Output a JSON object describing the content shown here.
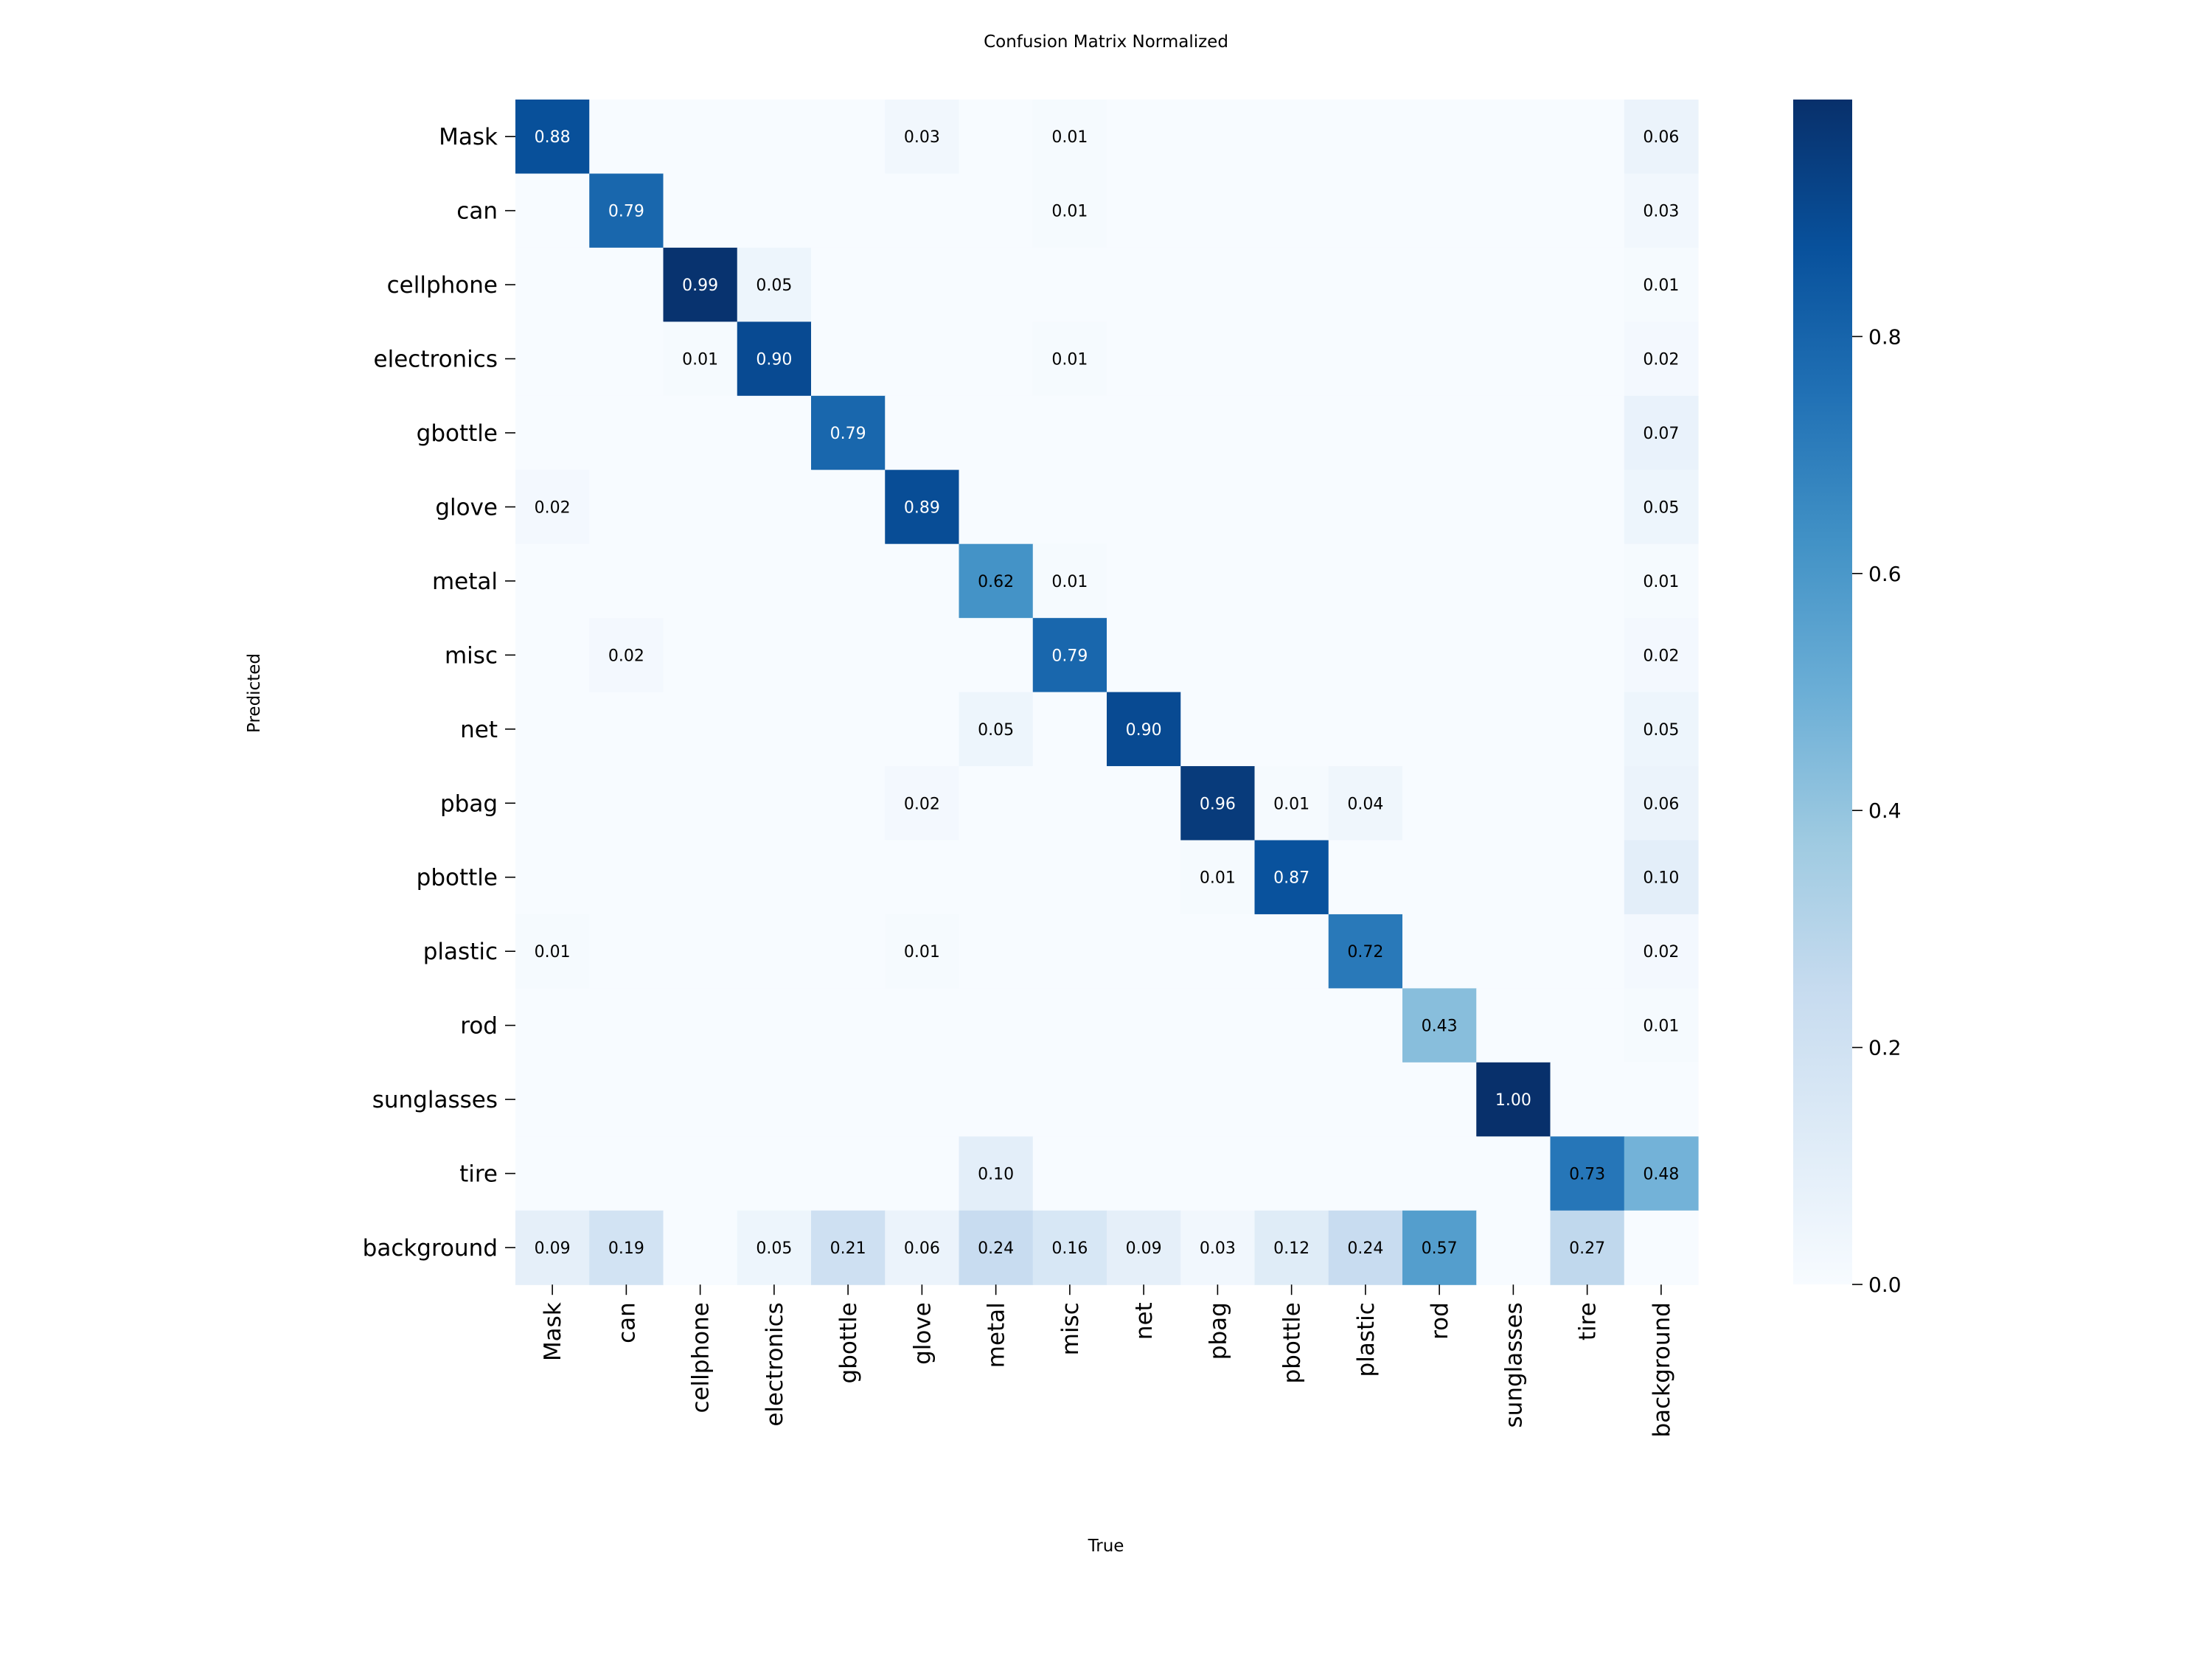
{
  "chart_data": {
    "type": "heatmap",
    "title": "Confusion Matrix Normalized",
    "xlabel": "True",
    "ylabel": "Predicted",
    "colormap": "Blues",
    "vmin": 0,
    "vmax": 1,
    "colorbar_ticks": [
      "0.0",
      "0.2",
      "0.4",
      "0.6",
      "0.8"
    ],
    "x_categories": [
      "Mask",
      "can",
      "cellphone",
      "electronics",
      "gbottle",
      "glove",
      "metal",
      "misc",
      "net",
      "pbag",
      "pbottle",
      "plastic",
      "rod",
      "sunglasses",
      "tire",
      "background"
    ],
    "y_categories": [
      "Mask",
      "can",
      "cellphone",
      "electronics",
      "gbottle",
      "glove",
      "metal",
      "misc",
      "net",
      "pbag",
      "pbottle",
      "plastic",
      "rod",
      "sunglasses",
      "tire",
      "background"
    ],
    "values": [
      [
        0.88,
        null,
        null,
        null,
        null,
        0.03,
        null,
        0.01,
        null,
        null,
        null,
        null,
        null,
        null,
        null,
        0.06
      ],
      [
        null,
        0.79,
        null,
        null,
        null,
        null,
        null,
        0.01,
        null,
        null,
        null,
        null,
        null,
        null,
        null,
        0.03
      ],
      [
        null,
        null,
        0.99,
        0.05,
        null,
        null,
        null,
        null,
        null,
        null,
        null,
        null,
        null,
        null,
        null,
        0.01
      ],
      [
        null,
        null,
        0.01,
        0.9,
        null,
        null,
        null,
        0.01,
        null,
        null,
        null,
        null,
        null,
        null,
        null,
        0.02
      ],
      [
        null,
        null,
        null,
        null,
        0.79,
        null,
        null,
        null,
        null,
        null,
        null,
        null,
        null,
        null,
        null,
        0.07
      ],
      [
        0.02,
        null,
        null,
        null,
        null,
        0.89,
        null,
        null,
        null,
        null,
        null,
        null,
        null,
        null,
        null,
        0.05
      ],
      [
        null,
        null,
        null,
        null,
        null,
        null,
        0.62,
        0.01,
        null,
        null,
        null,
        null,
        null,
        null,
        null,
        0.01
      ],
      [
        null,
        0.02,
        null,
        null,
        null,
        null,
        null,
        0.79,
        null,
        null,
        null,
        null,
        null,
        null,
        null,
        0.02
      ],
      [
        null,
        null,
        null,
        null,
        null,
        null,
        0.05,
        null,
        0.9,
        null,
        null,
        null,
        null,
        null,
        null,
        0.05
      ],
      [
        null,
        null,
        null,
        null,
        null,
        0.02,
        null,
        null,
        null,
        0.96,
        0.01,
        0.04,
        null,
        null,
        null,
        0.06
      ],
      [
        null,
        null,
        null,
        null,
        null,
        null,
        null,
        null,
        null,
        0.01,
        0.87,
        null,
        null,
        null,
        null,
        0.1
      ],
      [
        0.01,
        null,
        null,
        null,
        null,
        0.01,
        null,
        null,
        null,
        null,
        null,
        0.72,
        null,
        null,
        null,
        0.02
      ],
      [
        null,
        null,
        null,
        null,
        null,
        null,
        null,
        null,
        null,
        null,
        null,
        null,
        0.43,
        null,
        null,
        0.01
      ],
      [
        null,
        null,
        null,
        null,
        null,
        null,
        null,
        null,
        null,
        null,
        null,
        null,
        null,
        1.0,
        null,
        null
      ],
      [
        null,
        null,
        null,
        null,
        null,
        null,
        0.1,
        null,
        null,
        null,
        null,
        null,
        null,
        null,
        0.73,
        0.48
      ],
      [
        0.09,
        0.19,
        null,
        0.05,
        0.21,
        0.06,
        0.24,
        0.16,
        0.09,
        0.03,
        0.12,
        0.24,
        0.57,
        null,
        0.27,
        null
      ]
    ]
  }
}
